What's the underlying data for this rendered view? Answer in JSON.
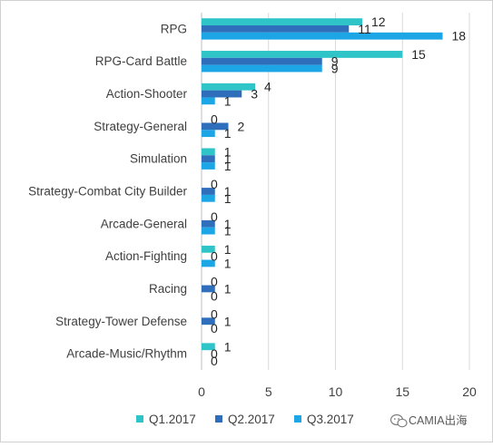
{
  "chart_data": {
    "type": "bar",
    "orientation": "horizontal",
    "categories": [
      "RPG",
      "RPG-Card Battle",
      "Action-Shooter",
      "Strategy-General",
      "Simulation",
      "Strategy-Combat City Builder",
      "Arcade-General",
      "Action-Fighting",
      "Racing",
      "Strategy-Tower Defense",
      "Arcade-Music/Rhythm"
    ],
    "series": [
      {
        "name": "Q1.2017",
        "color": "#2EC4C8",
        "values": [
          12,
          15,
          4,
          0,
          1,
          0,
          0,
          1,
          0,
          0,
          1
        ]
      },
      {
        "name": "Q2.2017",
        "color": "#2F6EBA",
        "values": [
          11,
          9,
          3,
          2,
          1,
          1,
          1,
          0,
          1,
          1,
          0
        ]
      },
      {
        "name": "Q3.2017",
        "color": "#1CA6E6",
        "values": [
          18,
          9,
          1,
          1,
          1,
          1,
          1,
          1,
          0,
          0,
          0
        ]
      }
    ],
    "xlim": [
      0,
      20
    ],
    "xticks": [
      "0",
      "5",
      "10",
      "15",
      "20"
    ],
    "grid": "vertical",
    "legend_position": "bottom",
    "title": "",
    "xlabel": "",
    "ylabel": ""
  },
  "watermark": {
    "text": "CAMIA出海",
    "icon": "wechat-logo-icon"
  }
}
